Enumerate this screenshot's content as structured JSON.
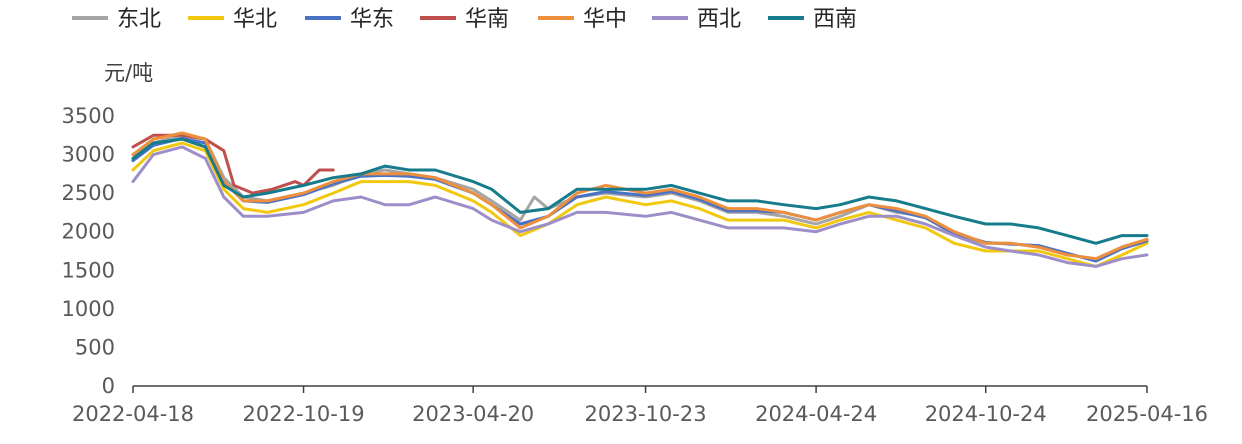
{
  "chart_data": {
    "type": "line",
    "unit": "元/吨",
    "ylim": [
      0,
      3500
    ],
    "yticks": [
      "3500",
      "3000",
      "2500",
      "2000",
      "1500",
      "1000",
      "500",
      "0"
    ],
    "xticks": [
      "2022-04-18",
      "2022-10-19",
      "2023-04-20",
      "2023-10-23",
      "2024-04-24",
      "2024-10-24",
      "2025-04-16"
    ],
    "grid": false,
    "legend_position": "top",
    "series": [
      {
        "name": "东北",
        "color": "#a5a5a5",
        "points": [
          [
            "2022-04-18",
            2950
          ],
          [
            "2022-05-10",
            3150
          ],
          [
            "2022-06-10",
            3250
          ],
          [
            "2022-07-05",
            3200
          ],
          [
            "2022-07-25",
            2700
          ],
          [
            "2022-08-15",
            2450
          ],
          [
            "2022-09-10",
            2400
          ],
          [
            "2022-10-19",
            2500
          ],
          [
            "2022-11-20",
            2600
          ],
          [
            "2022-12-20",
            2750
          ],
          [
            "2023-01-15",
            2800
          ],
          [
            "2023-02-10",
            2750
          ],
          [
            "2023-03-10",
            2700
          ],
          [
            "2023-04-20",
            2550
          ],
          [
            "2023-05-10",
            2400
          ],
          [
            "2023-06-10",
            2150
          ],
          [
            "2023-06-25",
            2450
          ],
          [
            "2023-07-10",
            2300
          ],
          [
            "2023-08-10",
            2450
          ],
          [
            "2023-09-10",
            2500
          ],
          [
            "2023-10-23",
            2450
          ],
          [
            "2023-11-20",
            2500
          ],
          [
            "2023-12-20",
            2400
          ],
          [
            "2024-01-20",
            2250
          ],
          [
            "2024-02-20",
            2250
          ],
          [
            "2024-03-20",
            2200
          ],
          [
            "2024-04-24",
            2100
          ],
          [
            "2024-05-20",
            2200
          ],
          [
            "2024-06-20",
            2350
          ],
          [
            "2024-07-20",
            2250
          ],
          [
            "2024-08-20",
            2200
          ],
          [
            "2024-09-20",
            1950
          ],
          [
            "2024-10-24",
            1850
          ],
          [
            "2024-11-20",
            1850
          ],
          [
            "2024-12-20",
            1800
          ],
          [
            "2025-01-20",
            1700
          ],
          [
            "2025-02-20",
            1650
          ],
          [
            "2025-03-20",
            1800
          ],
          [
            "2025-04-16",
            1900
          ]
        ]
      },
      {
        "name": "华北",
        "color": "#f2c80f",
        "points": [
          [
            "2022-04-18",
            2800
          ],
          [
            "2022-05-10",
            3050
          ],
          [
            "2022-06-10",
            3150
          ],
          [
            "2022-07-05",
            3050
          ],
          [
            "2022-07-25",
            2550
          ],
          [
            "2022-08-15",
            2300
          ],
          [
            "2022-09-10",
            2250
          ],
          [
            "2022-10-19",
            2350
          ],
          [
            "2022-11-20",
            2500
          ],
          [
            "2022-12-20",
            2650
          ],
          [
            "2023-01-15",
            2650
          ],
          [
            "2023-02-10",
            2650
          ],
          [
            "2023-03-10",
            2600
          ],
          [
            "2023-04-20",
            2400
          ],
          [
            "2023-05-10",
            2250
          ],
          [
            "2023-06-10",
            1950
          ],
          [
            "2023-07-10",
            2100
          ],
          [
            "2023-08-10",
            2350
          ],
          [
            "2023-09-10",
            2450
          ],
          [
            "2023-10-23",
            2350
          ],
          [
            "2023-11-20",
            2400
          ],
          [
            "2023-12-20",
            2300
          ],
          [
            "2024-01-20",
            2150
          ],
          [
            "2024-02-20",
            2150
          ],
          [
            "2024-03-20",
            2150
          ],
          [
            "2024-04-24",
            2050
          ],
          [
            "2024-05-20",
            2150
          ],
          [
            "2024-06-20",
            2250
          ],
          [
            "2024-07-20",
            2150
          ],
          [
            "2024-08-20",
            2050
          ],
          [
            "2024-09-20",
            1850
          ],
          [
            "2024-10-24",
            1750
          ],
          [
            "2024-11-20",
            1750
          ],
          [
            "2024-12-20",
            1750
          ],
          [
            "2025-01-20",
            1650
          ],
          [
            "2025-02-20",
            1550
          ],
          [
            "2025-03-20",
            1700
          ],
          [
            "2025-04-16",
            1850
          ]
        ]
      },
      {
        "name": "华东",
        "color": "#4a72c4",
        "points": [
          [
            "2022-04-18",
            2920
          ],
          [
            "2022-05-10",
            3120
          ],
          [
            "2022-06-10",
            3210
          ],
          [
            "2022-07-05",
            3150
          ],
          [
            "2022-07-25",
            2650
          ],
          [
            "2022-08-15",
            2400
          ],
          [
            "2022-09-10",
            2380
          ],
          [
            "2022-10-19",
            2480
          ],
          [
            "2022-11-20",
            2620
          ],
          [
            "2022-12-20",
            2720
          ],
          [
            "2023-01-15",
            2730
          ],
          [
            "2023-02-10",
            2720
          ],
          [
            "2023-03-10",
            2680
          ],
          [
            "2023-04-20",
            2500
          ],
          [
            "2023-05-10",
            2350
          ],
          [
            "2023-06-10",
            2100
          ],
          [
            "2023-07-10",
            2200
          ],
          [
            "2023-08-10",
            2450
          ],
          [
            "2023-09-10",
            2520
          ],
          [
            "2023-10-23",
            2470
          ],
          [
            "2023-11-20",
            2520
          ],
          [
            "2023-12-20",
            2420
          ],
          [
            "2024-01-20",
            2270
          ],
          [
            "2024-02-20",
            2270
          ],
          [
            "2024-03-20",
            2250
          ],
          [
            "2024-04-24",
            2150
          ],
          [
            "2024-05-20",
            2250
          ],
          [
            "2024-06-20",
            2350
          ],
          [
            "2024-07-20",
            2270
          ],
          [
            "2024-08-20",
            2180
          ],
          [
            "2024-09-20",
            1980
          ],
          [
            "2024-10-24",
            1860
          ],
          [
            "2024-11-20",
            1840
          ],
          [
            "2024-12-20",
            1820
          ],
          [
            "2025-01-20",
            1720
          ],
          [
            "2025-02-20",
            1620
          ],
          [
            "2025-03-20",
            1780
          ],
          [
            "2025-04-16",
            1880
          ]
        ]
      },
      {
        "name": "华南",
        "color": "#c0504d",
        "points": [
          [
            "2022-04-18",
            3100
          ],
          [
            "2022-05-10",
            3250
          ],
          [
            "2022-06-10",
            3250
          ],
          [
            "2022-07-05",
            3200
          ],
          [
            "2022-07-25",
            3050
          ],
          [
            "2022-08-05",
            2600
          ],
          [
            "2022-08-25",
            2500
          ],
          [
            "2022-09-15",
            2550
          ],
          [
            "2022-10-10",
            2650
          ],
          [
            "2022-10-19",
            2600
          ],
          [
            "2022-11-05",
            2800
          ],
          [
            "2022-11-20",
            2800
          ]
        ]
      },
      {
        "name": "华中",
        "color": "#ee8f3c",
        "points": [
          [
            "2022-04-18",
            3000
          ],
          [
            "2022-05-10",
            3200
          ],
          [
            "2022-06-10",
            3280
          ],
          [
            "2022-07-05",
            3200
          ],
          [
            "2022-07-25",
            2650
          ],
          [
            "2022-08-15",
            2400
          ],
          [
            "2022-09-10",
            2400
          ],
          [
            "2022-10-19",
            2500
          ],
          [
            "2022-11-20",
            2650
          ],
          [
            "2022-12-20",
            2750
          ],
          [
            "2023-01-15",
            2750
          ],
          [
            "2023-02-10",
            2750
          ],
          [
            "2023-03-10",
            2700
          ],
          [
            "2023-04-20",
            2500
          ],
          [
            "2023-05-10",
            2350
          ],
          [
            "2023-06-10",
            2050
          ],
          [
            "2023-07-10",
            2200
          ],
          [
            "2023-08-10",
            2500
          ],
          [
            "2023-09-10",
            2600
          ],
          [
            "2023-10-23",
            2500
          ],
          [
            "2023-11-20",
            2550
          ],
          [
            "2023-12-20",
            2450
          ],
          [
            "2024-01-20",
            2300
          ],
          [
            "2024-02-20",
            2300
          ],
          [
            "2024-03-20",
            2250
          ],
          [
            "2024-04-24",
            2150
          ],
          [
            "2024-05-20",
            2250
          ],
          [
            "2024-06-20",
            2350
          ],
          [
            "2024-07-20",
            2300
          ],
          [
            "2024-08-20",
            2200
          ],
          [
            "2024-09-20",
            2000
          ],
          [
            "2024-10-24",
            1850
          ],
          [
            "2024-11-20",
            1850
          ],
          [
            "2024-12-20",
            1800
          ],
          [
            "2025-01-20",
            1700
          ],
          [
            "2025-02-20",
            1650
          ],
          [
            "2025-03-20",
            1800
          ],
          [
            "2025-04-16",
            1900
          ]
        ]
      },
      {
        "name": "西北",
        "color": "#9d8ec9",
        "points": [
          [
            "2022-04-18",
            2650
          ],
          [
            "2022-05-10",
            3000
          ],
          [
            "2022-06-10",
            3100
          ],
          [
            "2022-07-05",
            2950
          ],
          [
            "2022-07-25",
            2450
          ],
          [
            "2022-08-15",
            2200
          ],
          [
            "2022-09-10",
            2200
          ],
          [
            "2022-10-19",
            2250
          ],
          [
            "2022-11-20",
            2400
          ],
          [
            "2022-12-20",
            2450
          ],
          [
            "2023-01-15",
            2350
          ],
          [
            "2023-02-10",
            2350
          ],
          [
            "2023-03-10",
            2450
          ],
          [
            "2023-04-20",
            2300
          ],
          [
            "2023-05-10",
            2150
          ],
          [
            "2023-06-10",
            2000
          ],
          [
            "2023-07-10",
            2100
          ],
          [
            "2023-08-10",
            2250
          ],
          [
            "2023-09-10",
            2250
          ],
          [
            "2023-10-23",
            2200
          ],
          [
            "2023-11-20",
            2250
          ],
          [
            "2023-12-20",
            2150
          ],
          [
            "2024-01-20",
            2050
          ],
          [
            "2024-02-20",
            2050
          ],
          [
            "2024-03-20",
            2050
          ],
          [
            "2024-04-24",
            2000
          ],
          [
            "2024-05-20",
            2100
          ],
          [
            "2024-06-20",
            2200
          ],
          [
            "2024-07-20",
            2200
          ],
          [
            "2024-08-20",
            2100
          ],
          [
            "2024-09-20",
            1950
          ],
          [
            "2024-10-24",
            1800
          ],
          [
            "2024-11-20",
            1750
          ],
          [
            "2024-12-20",
            1700
          ],
          [
            "2025-01-20",
            1600
          ],
          [
            "2025-02-20",
            1550
          ],
          [
            "2025-03-20",
            1650
          ],
          [
            "2025-04-16",
            1700
          ]
        ]
      },
      {
        "name": "西南",
        "color": "#167b8b",
        "points": [
          [
            "2022-04-18",
            2950
          ],
          [
            "2022-05-10",
            3150
          ],
          [
            "2022-06-10",
            3200
          ],
          [
            "2022-07-05",
            3100
          ],
          [
            "2022-07-25",
            2600
          ],
          [
            "2022-08-15",
            2450
          ],
          [
            "2022-09-10",
            2500
          ],
          [
            "2022-10-19",
            2600
          ],
          [
            "2022-11-20",
            2700
          ],
          [
            "2022-12-20",
            2750
          ],
          [
            "2023-01-15",
            2850
          ],
          [
            "2023-02-10",
            2800
          ],
          [
            "2023-03-10",
            2800
          ],
          [
            "2023-04-20",
            2650
          ],
          [
            "2023-05-10",
            2550
          ],
          [
            "2023-06-10",
            2250
          ],
          [
            "2023-07-10",
            2300
          ],
          [
            "2023-08-10",
            2550
          ],
          [
            "2023-09-10",
            2550
          ],
          [
            "2023-10-23",
            2550
          ],
          [
            "2023-11-20",
            2600
          ],
          [
            "2023-12-20",
            2500
          ],
          [
            "2024-01-20",
            2400
          ],
          [
            "2024-02-20",
            2400
          ],
          [
            "2024-03-20",
            2350
          ],
          [
            "2024-04-24",
            2300
          ],
          [
            "2024-05-20",
            2350
          ],
          [
            "2024-06-20",
            2450
          ],
          [
            "2024-07-20",
            2400
          ],
          [
            "2024-08-20",
            2300
          ],
          [
            "2024-09-20",
            2200
          ],
          [
            "2024-10-24",
            2100
          ],
          [
            "2024-11-20",
            2100
          ],
          [
            "2024-12-20",
            2050
          ],
          [
            "2025-01-20",
            1950
          ],
          [
            "2025-02-20",
            1850
          ],
          [
            "2025-03-20",
            1950
          ],
          [
            "2025-04-16",
            1950
          ]
        ]
      }
    ]
  }
}
